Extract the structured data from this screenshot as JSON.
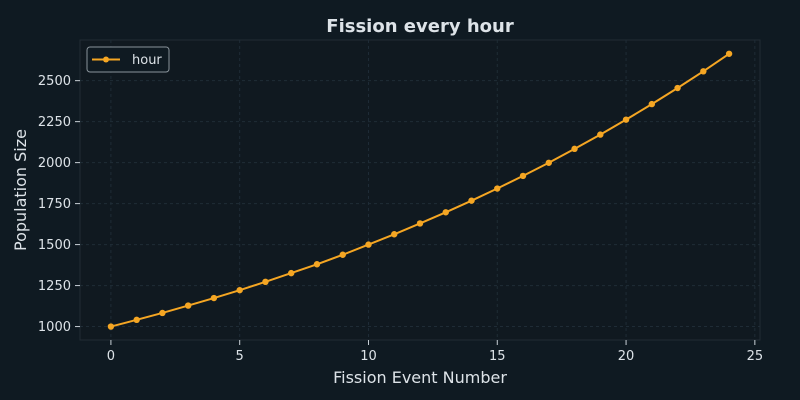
{
  "chart_data": {
    "type": "line",
    "title": "Fission every hour",
    "xlabel": "Fission Event Number",
    "ylabel": "Population Size",
    "xlim": [
      -1.2,
      25.2
    ],
    "ylim": [
      918,
      2748
    ],
    "xticks": [
      0,
      5,
      10,
      15,
      20,
      25
    ],
    "yticks": [
      1000,
      1250,
      1500,
      1750,
      2000,
      2250,
      2500
    ],
    "grid": true,
    "legend_position": "top-left",
    "series": [
      {
        "name": "hour",
        "color": "#f5a623",
        "marker": "circle",
        "x": [
          0,
          1,
          2,
          3,
          4,
          5,
          6,
          7,
          8,
          9,
          10,
          11,
          12,
          13,
          14,
          15,
          16,
          17,
          18,
          19,
          20,
          21,
          22,
          23,
          24
        ],
        "y": [
          1000,
          1041,
          1083,
          1128,
          1174,
          1222,
          1273,
          1326,
          1380,
          1438,
          1500,
          1563,
          1629,
          1697,
          1768,
          1842,
          1919,
          1999,
          2084,
          2171,
          2262,
          2357,
          2455,
          2557,
          2664
        ]
      }
    ]
  }
}
